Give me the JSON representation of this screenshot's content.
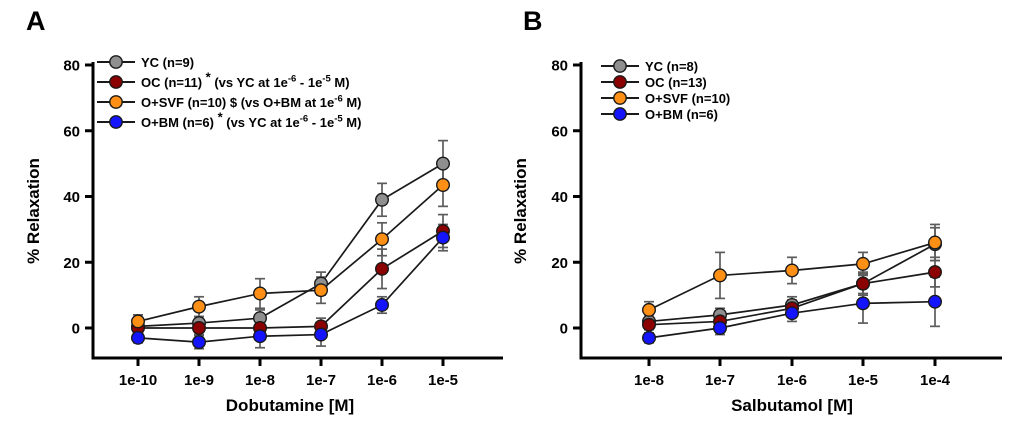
{
  "figure": {
    "background": "#ffffff",
    "colors": {
      "axis": "#000000",
      "series_line": "#1a1a1a",
      "error_bar": "#5c5c5c",
      "marker_outline": "#1a1a1a",
      "text": "#000000"
    }
  },
  "chart_data": [
    {
      "type": "line",
      "panel_label": "A",
      "title": "",
      "xlabel": "Dobutamine [M]",
      "ylabel": "% Relaxation",
      "categories": [
        "1e-10",
        "1e-9",
        "1e-8",
        "1e-7",
        "1e-6",
        "1e-5"
      ],
      "yticks": [
        80,
        60,
        40,
        20,
        0
      ],
      "ylim": [
        -9,
        85
      ],
      "grid": false,
      "legend_position": "top-left-inside",
      "series": [
        {
          "name": "YC",
          "n": 9,
          "color": "#8f8f8f",
          "values": [
            0.5,
            1.5,
            3,
            13.5,
            39,
            50
          ],
          "errors": [
            2,
            2,
            2.5,
            3.5,
            5,
            7
          ],
          "legend_segments": [
            {
              "t": "YC (n=9)"
            }
          ]
        },
        {
          "name": "OC",
          "n": 11,
          "color": "#8b0000",
          "values": [
            0,
            0,
            0,
            0.5,
            18,
            29.5
          ],
          "errors": [
            2,
            2,
            2,
            2.5,
            6,
            5
          ],
          "legend_segments": [
            {
              "t": "OC (n=11) "
            },
            {
              "t": "*",
              "sup": true
            },
            {
              "t": " (vs YC at 1e"
            },
            {
              "t": "-6",
              "sup": true
            },
            {
              "t": " - 1e"
            },
            {
              "t": "-5",
              "sup": true
            },
            {
              "t": " M)"
            }
          ]
        },
        {
          "name": "O+SVF",
          "n": 10,
          "color": "#ff9015",
          "values": [
            2,
            6.5,
            10.5,
            11.5,
            27,
            43.5
          ],
          "errors": [
            2,
            3,
            4.5,
            4,
            5,
            6.5
          ],
          "legend_segments": [
            {
              "t": "O+SVF (n=10) $ (vs O+BM at 1e"
            },
            {
              "t": "-6",
              "sup": true
            },
            {
              "t": " M)"
            }
          ]
        },
        {
          "name": "O+BM",
          "n": 6,
          "color": "#1414ff",
          "values": [
            -3,
            -4.3,
            -2.5,
            -2,
            7,
            27.5
          ],
          "errors": [
            1.5,
            2,
            3.5,
            3.5,
            2.5,
            4
          ],
          "legend_segments": [
            {
              "t": "O+BM (n=6) "
            },
            {
              "t": "*",
              "sup": true
            },
            {
              "t": " (vs YC at 1e"
            },
            {
              "t": "-6",
              "sup": true
            },
            {
              "t": " - 1e"
            },
            {
              "t": "-5",
              "sup": true
            },
            {
              "t": " M)"
            }
          ]
        }
      ]
    },
    {
      "type": "line",
      "panel_label": "B",
      "title": "",
      "xlabel": "Salbutamol [M]",
      "ylabel": "% Relaxation",
      "categories": [
        "1e-8",
        "1e-7",
        "1e-6",
        "1e-5",
        "1e-4"
      ],
      "yticks": [
        80,
        60,
        40,
        20,
        0
      ],
      "ylim": [
        -9,
        85
      ],
      "grid": false,
      "legend_position": "top-left-inside",
      "series": [
        {
          "name": "YC",
          "n": 8,
          "color": "#8f8f8f",
          "values": [
            2,
            4,
            7,
            13.5,
            25.5
          ],
          "errors": [
            2,
            2,
            2.5,
            3,
            5
          ],
          "legend_segments": [
            {
              "t": "YC (n=8)"
            }
          ]
        },
        {
          "name": "OC",
          "n": 13,
          "color": "#8b0000",
          "values": [
            1,
            2,
            6,
            13.5,
            17
          ],
          "errors": [
            1.5,
            2,
            2.5,
            3.5,
            4.5
          ],
          "legend_segments": [
            {
              "t": "OC (n=13)"
            }
          ]
        },
        {
          "name": "O+SVF",
          "n": 10,
          "color": "#ff9015",
          "values": [
            5.5,
            16,
            17.5,
            19.5,
            26
          ],
          "errors": [
            2.5,
            7,
            4,
            3.5,
            5.5
          ],
          "legend_segments": [
            {
              "t": "O+SVF (n=10)"
            }
          ]
        },
        {
          "name": "O+BM",
          "n": 6,
          "color": "#1414ff",
          "values": [
            -3,
            0,
            4.5,
            7.5,
            8
          ],
          "errors": [
            1.5,
            2,
            2.5,
            6,
            7.5
          ],
          "legend_segments": [
            {
              "t": "O+BM (n=6)"
            }
          ]
        }
      ]
    }
  ]
}
